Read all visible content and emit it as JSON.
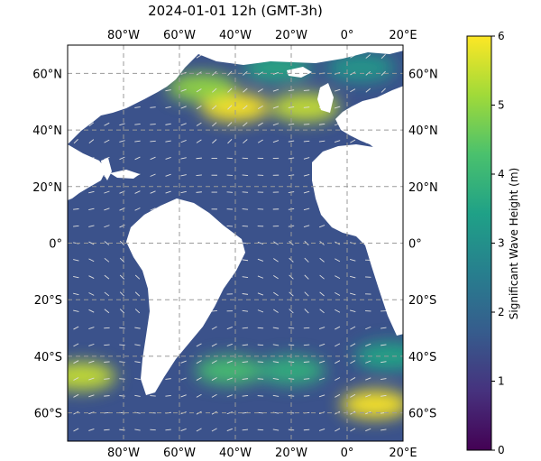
{
  "title": "2024-01-01 12h (GMT-3h)",
  "map": {
    "lon_range": [
      -100,
      20
    ],
    "lat_range": [
      -70,
      70
    ],
    "lon_ticks": [
      {
        "value": -80,
        "label": "80°W"
      },
      {
        "value": -60,
        "label": "60°W"
      },
      {
        "value": -40,
        "label": "40°W"
      },
      {
        "value": -20,
        "label": "20°W"
      },
      {
        "value": 0,
        "label": "0°"
      },
      {
        "value": 20,
        "label": "20°E"
      }
    ],
    "lat_ticks": [
      {
        "value": 60,
        "label": "60°N"
      },
      {
        "value": 40,
        "label": "40°N"
      },
      {
        "value": 20,
        "label": "20°N"
      },
      {
        "value": 0,
        "label": "0°"
      },
      {
        "value": -20,
        "label": "20°S"
      },
      {
        "value": -40,
        "label": "40°S"
      },
      {
        "value": -60,
        "label": "60°S"
      }
    ],
    "gridlines": true,
    "colors": {
      "land": "#ffffff",
      "ocean_base": "#3b528b",
      "arrows": "#dddddd",
      "grid": "#9a9a9a"
    },
    "hotspots": [
      {
        "lon": -40,
        "lat": 48,
        "value": 6.0
      },
      {
        "lon": -52,
        "lat": 55,
        "value": 5.0
      },
      {
        "lon": -15,
        "lat": 48,
        "value": 5.5
      },
      {
        "lon": -25,
        "lat": 62,
        "value": 3.6
      },
      {
        "lon": 5,
        "lat": 62,
        "value": 3.2
      },
      {
        "lon": -95,
        "lat": -47,
        "value": 5.5
      },
      {
        "lon": 10,
        "lat": -57,
        "value": 6.0
      },
      {
        "lon": -42,
        "lat": -45,
        "value": 4.2
      },
      {
        "lon": -20,
        "lat": -45,
        "value": 3.8
      },
      {
        "lon": 15,
        "lat": -40,
        "value": 3.5
      }
    ]
  },
  "colorbar": {
    "label": "Significant Wave Height (m)",
    "min": 0,
    "max": 6,
    "ticks": [
      {
        "value": 0,
        "label": "0"
      },
      {
        "value": 1,
        "label": "1"
      },
      {
        "value": 2,
        "label": "2"
      },
      {
        "value": 3,
        "label": "3"
      },
      {
        "value": 4,
        "label": "4"
      },
      {
        "value": 5,
        "label": "5"
      },
      {
        "value": 6,
        "label": "6"
      }
    ],
    "colormap": [
      "#440154",
      "#46327e",
      "#365c8d",
      "#277f8e",
      "#1fa187",
      "#4ac16d",
      "#a0da39",
      "#fde725"
    ]
  }
}
